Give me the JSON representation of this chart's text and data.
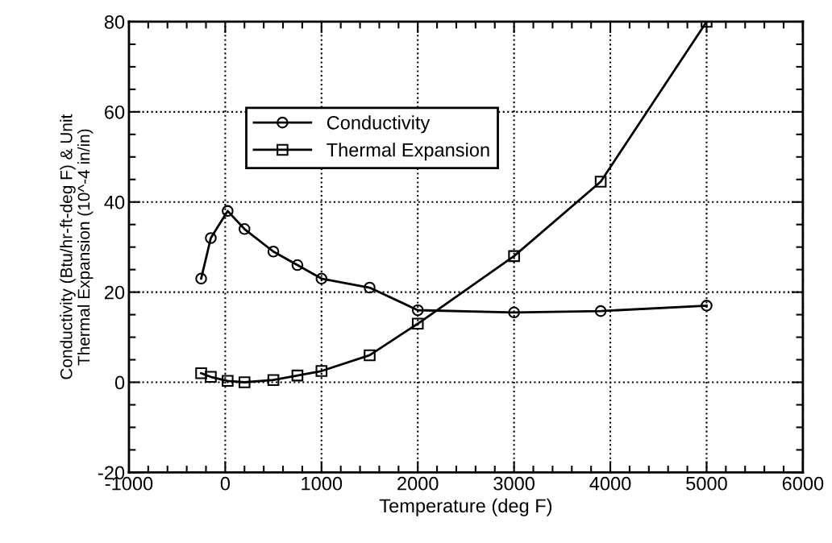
{
  "chart_data": {
    "type": "line",
    "xlabel": "Temperature (deg F)",
    "ylabel": "Conductivity (Btu/hr-ft-deg F) & Unit\nThermal Expansion (10^-4 in/in)",
    "xlim": [
      -1000,
      6000
    ],
    "xticks": [
      -1000,
      0,
      1000,
      2000,
      3000,
      4000,
      5000,
      6000
    ],
    "ylim": [
      -20,
      80
    ],
    "yticks": [
      -20,
      0,
      20,
      40,
      60,
      80
    ],
    "grid": true,
    "legend": "top left",
    "line_style": "solid",
    "series": [
      {
        "name": "Conductivity",
        "color": "#000000",
        "marker": "circle",
        "x": [
          -250,
          -150,
          25,
          200,
          500,
          750,
          1000,
          1500,
          2000,
          3000,
          3900,
          5000
        ],
        "values": [
          23,
          32,
          38,
          34,
          29,
          26,
          23,
          21,
          16,
          15.5,
          15.8,
          17
        ]
      },
      {
        "name": "Thermal Expansion",
        "color": "#000000",
        "marker": "square",
        "x": [
          -250,
          -150,
          25,
          200,
          500,
          750,
          1000,
          1500,
          2000,
          3000,
          3900,
          5000
        ],
        "values": [
          2,
          1.2,
          0.3,
          0,
          0.5,
          1.5,
          2.5,
          6,
          13,
          28,
          44.5,
          80
        ]
      }
    ]
  }
}
